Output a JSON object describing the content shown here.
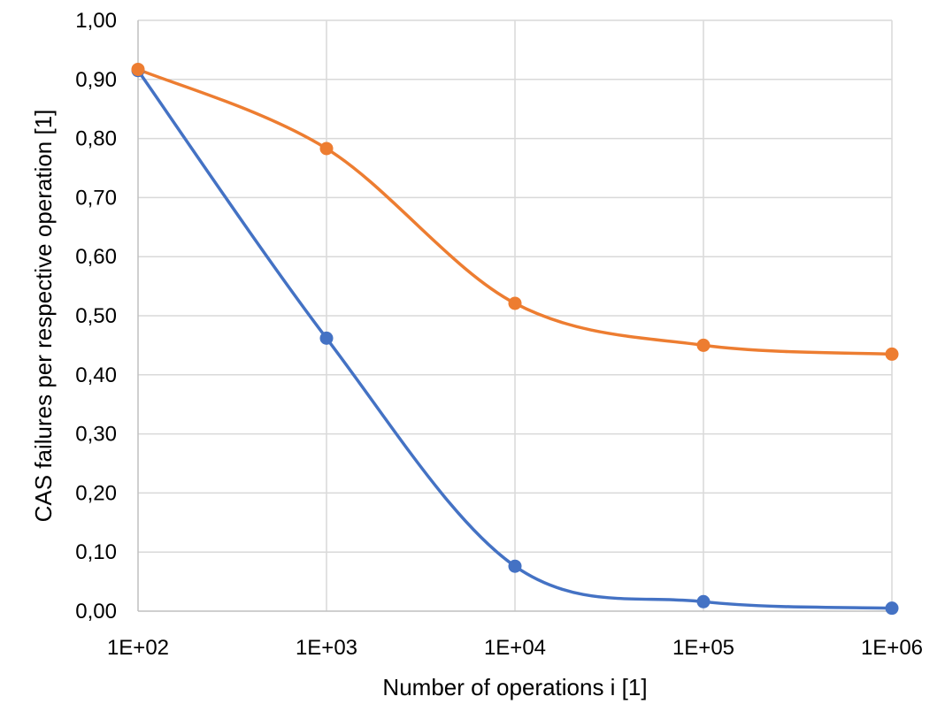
{
  "chart_data": {
    "type": "line",
    "title": "",
    "xlabel": "Number of operations i [1]",
    "ylabel": "CAS failures per respective operation [1]",
    "x_scale": "log",
    "x": [
      100,
      1000,
      10000,
      100000,
      1000000
    ],
    "x_tick_labels": [
      "1E+02",
      "1E+03",
      "1E+04",
      "1E+05",
      "1E+06"
    ],
    "ylim": [
      0,
      1
    ],
    "y_ticks": [
      0,
      0.1,
      0.2,
      0.3,
      0.4,
      0.5,
      0.6,
      0.7,
      0.8,
      0.9,
      1.0
    ],
    "y_tick_labels": [
      "0,00",
      "0,10",
      "0,20",
      "0,30",
      "0,40",
      "0,50",
      "0,60",
      "0,70",
      "0,80",
      "0,90",
      "1,00"
    ],
    "grid": true,
    "legend": "none",
    "series": [
      {
        "color": "#4472c4",
        "values": [
          0.915,
          0.462,
          0.076,
          0.016,
          0.005
        ]
      },
      {
        "color": "#ed7d31",
        "values": [
          0.917,
          0.783,
          0.521,
          0.45,
          0.435
        ]
      }
    ]
  }
}
